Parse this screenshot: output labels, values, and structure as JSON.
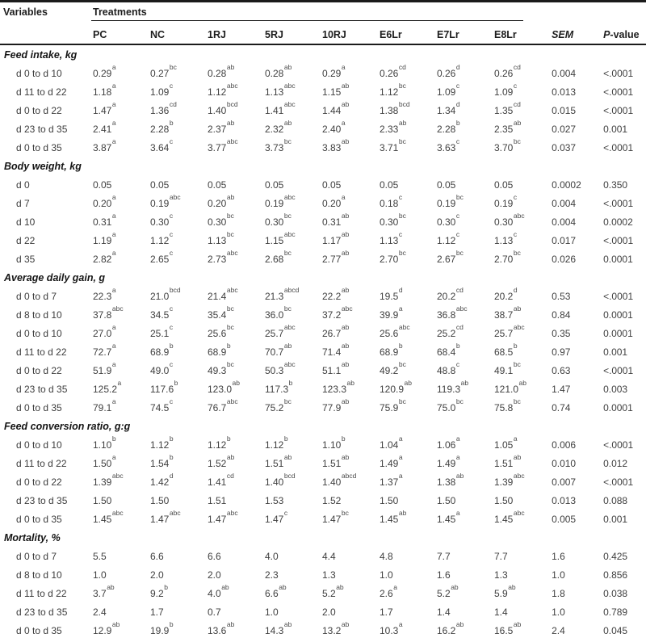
{
  "header": {
    "variables_label": "Variables",
    "treatments_label": "Treatments",
    "treatment_columns": [
      "PC",
      "NC",
      "1RJ",
      "5RJ",
      "10RJ",
      "E6Lr",
      "E7Lr",
      "E8Lr"
    ],
    "sem_label": "SEM",
    "pvalue_label_p": "P",
    "pvalue_label_rest": "-value"
  },
  "sections": [
    {
      "title": "Feed intake, kg",
      "rows": [
        {
          "label": "d 0 to d 10",
          "cells": [
            "0.29^a",
            "0.27^bc",
            "0.28^ab",
            "0.28^ab",
            "0.29^a",
            "0.26^cd",
            "0.26^d",
            "0.26^cd"
          ],
          "sem": "0.004",
          "p": "<.0001"
        },
        {
          "label": "d 11 to d 22",
          "cells": [
            "1.18^a",
            "1.09^c",
            "1.12^abc",
            "1.13^abc",
            "1.15^ab",
            "1.12^bc",
            "1.09^c",
            "1.09^c"
          ],
          "sem": "0.013",
          "p": "<.0001"
        },
        {
          "label": "d 0 to d 22",
          "cells": [
            "1.47^a",
            "1.36^cd",
            "1.40^bcd",
            "1.41^abc",
            "1.44^ab",
            "1.38^bcd",
            "1.34^d",
            "1.35^cd"
          ],
          "sem": "0.015",
          "p": "<.0001"
        },
        {
          "label": "d 23 to d 35",
          "cells": [
            "2.41^a",
            "2.28^b",
            "2.37^ab",
            "2.32^ab",
            "2.40^a",
            "2.33^ab",
            "2.28^b",
            "2.35^ab"
          ],
          "sem": "0.027",
          "p": "0.001"
        },
        {
          "label": "d 0 to d 35",
          "cells": [
            "3.87^a",
            "3.64^c",
            "3.77^abc",
            "3.73^bc",
            "3.83^ab",
            "3.71^bc",
            "3.63^c",
            "3.70^bc"
          ],
          "sem": "0.037",
          "p": "<.0001"
        }
      ]
    },
    {
      "title": "Body weight, kg",
      "rows": [
        {
          "label": "d 0",
          "cells": [
            "0.05",
            "0.05",
            "0.05",
            "0.05",
            "0.05",
            "0.05",
            "0.05",
            "0.05"
          ],
          "sem": "0.0002",
          "p": "0.350"
        },
        {
          "label": "d 7",
          "cells": [
            "0.20^a",
            "0.19^abc",
            "0.20^ab",
            "0.19^abc",
            "0.20^a",
            "0.18^c",
            "0.19^bc",
            "0.19^c"
          ],
          "sem": "0.004",
          "p": "<.0001"
        },
        {
          "label": "d 10",
          "cells": [
            "0.31^a",
            "0.30^c",
            "0.30^bc",
            "0.30^bc",
            "0.31^ab",
            "0.30^bc",
            "0.30^c",
            "0.30^abc"
          ],
          "sem": "0.004",
          "p": "0.0002"
        },
        {
          "label": "d 22",
          "cells": [
            "1.19^a",
            "1.12^c",
            "1.13^bc",
            "1.15^abc",
            "1.17^ab",
            "1.13^c",
            "1.12^c",
            "1.13^c"
          ],
          "sem": "0.017",
          "p": "<.0001"
        },
        {
          "label": "d 35",
          "cells": [
            "2.82^a",
            "2.65^c",
            "2.73^abc",
            "2.68^bc",
            "2.77^ab",
            "2.70^bc",
            "2.67^bc",
            "2.70^bc"
          ],
          "sem": "0.026",
          "p": "0.0001"
        }
      ]
    },
    {
      "title": "Average daily gain, g",
      "rows": [
        {
          "label": "d 0 to d 7",
          "cells": [
            "22.3^a",
            "21.0^bcd",
            "21.4^abc",
            "21.3^abcd",
            "22.2^ab",
            "19.5^d",
            "20.2^cd",
            "20.2^d"
          ],
          "sem": "0.53",
          "p": "<.0001"
        },
        {
          "label": "d 8 to d 10",
          "cells": [
            "37.8^abc",
            "34.5^c",
            "35.4^bc",
            "36.0^bc",
            "37.2^abc",
            "39.9^a",
            "36.8^abc",
            "38.7^ab"
          ],
          "sem": "0.84",
          "p": "0.0001"
        },
        {
          "label": "d 0 to d 10",
          "cells": [
            "27.0^a",
            "25.1^c",
            "25.6^bc",
            "25.7^abc",
            "26.7^ab",
            "25.6^abc",
            "25.2^cd",
            "25.7^abc"
          ],
          "sem": "0.35",
          "p": "0.0001"
        },
        {
          "label": "d 11 to d 22",
          "cells": [
            "72.7^a",
            "68.9^b",
            "68.9^b",
            "70.7^ab",
            "71.4^ab",
            "68.9^b",
            "68.4^b",
            "68.5^b"
          ],
          "sem": "0.97",
          "p": "0.001"
        },
        {
          "label": "d 0 to d 22",
          "cells": [
            "51.9^a",
            "49.0^c",
            "49.3^bc",
            "50.3^abc",
            "51.1^ab",
            "49.2^bc",
            "48.8^c",
            "49.1^bc"
          ],
          "sem": "0.63",
          "p": "<.0001"
        },
        {
          "label": "d 23 to d 35",
          "cells": [
            "125.2^a",
            "117.6^b",
            "123.0^ab",
            "117.3^b",
            "123.3^ab",
            "120.9^ab",
            "119.3^ab",
            "121.0^ab"
          ],
          "sem": "1.47",
          "p": "0.003"
        },
        {
          "label": "d 0 to d 35",
          "cells": [
            "79.1^a",
            "74.5^c",
            "76.7^abc",
            "75.2^bc",
            "77.9^ab",
            "75.9^bc",
            "75.0^bc",
            "75.8^bc"
          ],
          "sem": "0.74",
          "p": "0.0001"
        }
      ]
    },
    {
      "title": "Feed conversion ratio, g:g",
      "rows": [
        {
          "label": "d 0 to d 10",
          "cells": [
            "1.10^b",
            "1.12^b",
            "1.12^b",
            "1.12^b",
            "1.10^b",
            "1.04^a",
            "1.06^a",
            "1.05^a"
          ],
          "sem": "0.006",
          "p": "<.0001"
        },
        {
          "label": "d 11 to d 22",
          "cells": [
            "1.50^a",
            "1.54^b",
            "1.52^ab",
            "1.51^ab",
            "1.51^ab",
            "1.49^a",
            "1.49^a",
            "1.51^ab"
          ],
          "sem": "0.010",
          "p": "0.012"
        },
        {
          "label": "d 0 to d 22",
          "cells": [
            "1.39^abc",
            "1.42^d",
            "1.41^cd",
            "1.40^bcd",
            "1.40^abcd",
            "1.37^a",
            "1.38^ab",
            "1.39^abc"
          ],
          "sem": "0.007",
          "p": "<.0001"
        },
        {
          "label": "d 23 to d 35",
          "cells": [
            "1.50",
            "1.50",
            "1.51",
            "1.53",
            "1.52",
            "1.50",
            "1.50",
            "1.50"
          ],
          "sem": "0.013",
          "p": "0.088"
        },
        {
          "label": "d 0 to d 35",
          "cells": [
            "1.45^abc",
            "1.47^abc",
            "1.47^abc",
            "1.47^c",
            "1.47^bc",
            "1.45^ab",
            "1.45^a",
            "1.45^abc"
          ],
          "sem": "0.005",
          "p": "0.001"
        }
      ]
    },
    {
      "title": "Mortality, %",
      "rows": [
        {
          "label": "d 0 to d 7",
          "cells": [
            "5.5",
            "6.6",
            "6.6",
            "4.0",
            "4.4",
            "4.8",
            "7.7",
            "7.7"
          ],
          "sem": "1.6",
          "p": "0.425"
        },
        {
          "label": "d 8 to d 10",
          "cells": [
            "1.0",
            "2.0",
            "2.0",
            "2.3",
            "1.3",
            "1.0",
            "1.6",
            "1.3"
          ],
          "sem": "1.0",
          "p": "0.856"
        },
        {
          "label": "d 11 to d 22",
          "cells": [
            "3.7^ab",
            "9.2^b",
            "4.0^ab",
            "6.6^ab",
            "5.2^ab",
            "2.6^a",
            "5.2^ab",
            "5.9^ab"
          ],
          "sem": "1.8",
          "p": "0.038"
        },
        {
          "label": "d 23 to d 35",
          "cells": [
            "2.4",
            "1.7",
            "0.7",
            "1.0",
            "2.0",
            "1.7",
            "1.4",
            "1.4"
          ],
          "sem": "1.0",
          "p": "0.789"
        },
        {
          "label": "d 0 to d 35",
          "cells": [
            "12.9^ab",
            "19.9^b",
            "13.6^ab",
            "14.3^ab",
            "13.2^ab",
            "10.3^a",
            "16.2^ab",
            "16.5^ab"
          ],
          "sem": "2.4",
          "p": "0.045"
        }
      ]
    }
  ]
}
